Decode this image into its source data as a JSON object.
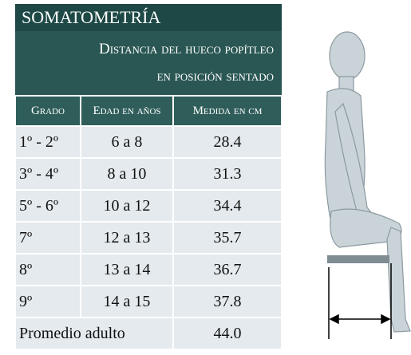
{
  "title": "SOMATOMETRÍA",
  "subtitle": [
    "Distancia del hueco popítleo",
    "en posición sentado"
  ],
  "table": {
    "header": [
      "Grado",
      "Edad en años",
      "Medida en cm"
    ],
    "rows": [
      [
        "1º - 2º",
        "6 a 8",
        "28.4"
      ],
      [
        "3º - 4º",
        "8 a 10",
        "31.3"
      ],
      [
        "5º - 6º",
        "10 a 12",
        "34.4"
      ],
      [
        "7º",
        "12 a 13",
        "35.7"
      ],
      [
        "8º",
        "13 a 14",
        "36.7"
      ],
      [
        "9º",
        "14 a 15",
        "37.8"
      ]
    ],
    "footer": [
      "Promedio adulto",
      "44.0"
    ]
  }
}
